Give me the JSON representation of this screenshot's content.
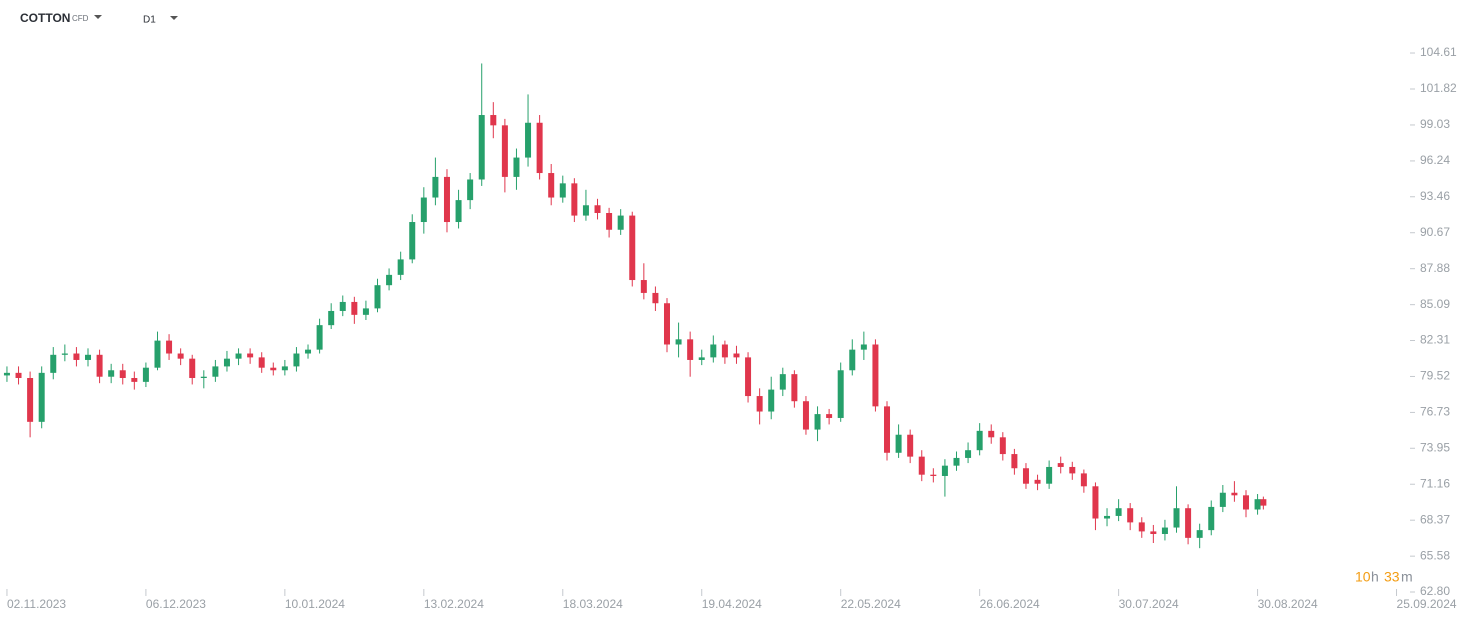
{
  "chart_data": {
    "type": "candlestick",
    "title": "COTTON",
    "subtitle": "CFD",
    "timeframe": "D1",
    "timer": [
      "10",
      "h",
      "33",
      "m"
    ],
    "up_color": "#26a06b",
    "down_color": "#e0364c",
    "x": [
      0,
      2,
      4,
      6,
      8,
      10,
      12,
      14,
      16,
      18,
      20,
      22,
      24,
      26,
      28,
      30,
      32,
      34,
      36,
      38,
      40,
      42,
      44,
      46,
      48,
      50,
      52,
      54,
      56,
      58,
      60,
      62,
      64,
      66,
      68,
      70,
      72,
      74,
      76,
      78,
      80,
      82,
      84,
      86,
      88,
      90,
      92,
      94,
      96,
      98,
      100,
      102,
      104,
      106,
      108,
      110,
      112,
      114,
      116,
      118,
      120,
      122,
      124,
      126,
      128,
      130,
      132,
      134,
      136,
      138,
      140,
      142,
      144,
      146,
      148,
      150,
      152,
      154,
      156,
      158,
      160,
      162,
      164,
      166,
      168,
      170,
      172,
      174,
      176,
      178,
      180,
      182,
      184,
      186,
      188,
      190,
      192,
      194,
      196,
      198,
      200,
      202,
      204,
      206,
      208,
      210,
      212,
      214,
      216,
      217
    ],
    "open": [
      79.6,
      79.8,
      79.4,
      76.0,
      79.8,
      81.2,
      81.3,
      80.8,
      81.2,
      79.5,
      80.0,
      79.4,
      79.1,
      80.2,
      82.3,
      81.3,
      80.9,
      79.4,
      79.5,
      80.3,
      80.9,
      81.3,
      81.0,
      80.2,
      80.0,
      80.3,
      81.3,
      81.6,
      83.5,
      84.6,
      85.3,
      84.3,
      84.8,
      86.6,
      87.4,
      88.6,
      91.5,
      93.4,
      95.0,
      91.5,
      93.2,
      94.8,
      99.8,
      99.0,
      95.0,
      96.5,
      99.2,
      95.3,
      93.4,
      94.5,
      92.0,
      92.8,
      92.2,
      90.9,
      92.0,
      87.0,
      86.0,
      85.2,
      82.0,
      82.4,
      80.8,
      81.0,
      82.0,
      81.3,
      81.0,
      78.0,
      76.8,
      78.5,
      79.7,
      77.6,
      75.4,
      76.6,
      76.3,
      80.0,
      81.6,
      82.0,
      77.2,
      73.6,
      75.0,
      73.3,
      71.9,
      71.8,
      72.6,
      73.2,
      73.8,
      75.3,
      74.8,
      73.5,
      72.4,
      71.5,
      71.2,
      72.8,
      72.5,
      72.0,
      71.0,
      68.5,
      68.7,
      69.3,
      68.2,
      67.5,
      67.3,
      67.8,
      69.3,
      67.0,
      67.6,
      69.4,
      70.5,
      70.3,
      69.2,
      70.0
    ],
    "high": [
      80.3,
      80.3,
      79.9,
      80.3,
      81.8,
      82.0,
      81.8,
      81.7,
      81.6,
      80.5,
      80.5,
      79.9,
      80.6,
      83.0,
      82.8,
      81.7,
      81.2,
      80.0,
      80.8,
      81.5,
      81.7,
      81.7,
      81.4,
      80.6,
      80.8,
      81.8,
      82.0,
      84.0,
      85.2,
      85.8,
      85.7,
      85.4,
      87.1,
      87.9,
      89.2,
      92.1,
      94.2,
      96.5,
      95.6,
      94.0,
      95.3,
      103.8,
      100.8,
      99.5,
      97.2,
      101.4,
      99.8,
      96.0,
      95.1,
      94.9,
      94.0,
      93.3,
      92.6,
      92.5,
      92.3,
      88.3,
      86.5,
      85.6,
      83.7,
      83.0,
      81.6,
      82.7,
      82.3,
      81.9,
      81.4,
      78.6,
      79.5,
      80.2,
      80.0,
      78.0,
      77.2,
      77.0,
      80.6,
      82.4,
      83.0,
      82.4,
      77.6,
      75.8,
      75.4,
      73.8,
      72.4,
      73.1,
      73.7,
      74.4,
      75.9,
      75.8,
      75.2,
      73.9,
      72.8,
      71.9,
      73.0,
      73.3,
      72.9,
      72.3,
      71.3,
      69.3,
      70.0,
      69.7,
      68.6,
      68.0,
      68.4,
      71.0,
      69.6,
      68.1,
      69.9,
      71.1,
      71.4,
      70.7,
      70.4,
      70.2
    ],
    "low": [
      79.1,
      78.9,
      74.8,
      75.5,
      79.3,
      80.7,
      80.3,
      80.3,
      79.0,
      79.0,
      78.9,
      78.5,
      78.7,
      80.0,
      80.8,
      80.4,
      78.9,
      78.6,
      79.1,
      79.9,
      80.4,
      80.5,
      79.8,
      79.6,
      79.6,
      79.9,
      80.9,
      81.3,
      83.2,
      84.2,
      83.6,
      83.9,
      84.5,
      86.2,
      87.0,
      88.3,
      90.6,
      92.8,
      90.7,
      91.0,
      92.5,
      94.3,
      98.0,
      93.8,
      94.0,
      95.8,
      94.8,
      92.8,
      93.0,
      91.5,
      91.6,
      91.7,
      90.3,
      90.5,
      86.5,
      85.5,
      84.6,
      81.4,
      81.0,
      79.5,
      80.4,
      80.6,
      80.5,
      80.5,
      77.5,
      75.8,
      76.2,
      78.0,
      77.1,
      75.0,
      74.5,
      75.8,
      76.0,
      79.6,
      80.8,
      76.8,
      73.0,
      73.2,
      72.8,
      71.4,
      71.3,
      70.2,
      72.2,
      72.8,
      73.4,
      74.3,
      73.0,
      71.9,
      70.8,
      70.7,
      70.8,
      72.0,
      71.5,
      70.5,
      67.6,
      67.9,
      68.3,
      67.6,
      67.0,
      66.6,
      66.8,
      67.4,
      66.5,
      66.2,
      67.2,
      69.0,
      69.8,
      68.6,
      68.8,
      69.2
    ],
    "close": [
      79.8,
      79.4,
      76.0,
      79.8,
      81.2,
      81.3,
      80.8,
      81.2,
      79.5,
      80.0,
      79.4,
      79.1,
      80.2,
      82.3,
      81.3,
      80.9,
      79.4,
      79.5,
      80.3,
      80.9,
      81.3,
      81.0,
      80.2,
      80.0,
      80.3,
      81.3,
      81.6,
      83.5,
      84.6,
      85.3,
      84.3,
      84.8,
      86.6,
      87.4,
      88.6,
      91.5,
      93.4,
      95.0,
      91.5,
      93.2,
      94.8,
      99.8,
      99.0,
      95.0,
      96.5,
      99.2,
      95.3,
      93.4,
      94.5,
      92.0,
      92.8,
      92.2,
      90.9,
      92.0,
      87.0,
      86.0,
      85.2,
      82.0,
      82.4,
      80.8,
      81.0,
      82.0,
      81.0,
      81.0,
      78.0,
      76.8,
      78.5,
      79.7,
      77.6,
      75.4,
      76.6,
      76.3,
      80.0,
      81.6,
      82.0,
      77.2,
      73.6,
      75.0,
      73.3,
      71.9,
      71.8,
      72.6,
      73.2,
      73.8,
      75.3,
      74.8,
      73.5,
      72.4,
      71.2,
      71.2,
      72.5,
      72.5,
      72.0,
      71.0,
      68.5,
      68.7,
      69.3,
      68.2,
      67.5,
      67.3,
      67.8,
      69.3,
      67.0,
      67.6,
      69.4,
      70.5,
      70.3,
      69.2,
      70.0,
      69.5
    ],
    "xlim": [
      -1.2,
      240.6
    ],
    "xticks": [
      {
        "value": 0,
        "label": "02.11.2023"
      },
      {
        "value": 24,
        "label": "06.12.2023"
      },
      {
        "value": 48,
        "label": "10.01.2024"
      },
      {
        "value": 72,
        "label": "13.02.2024"
      },
      {
        "value": 96,
        "label": "18.03.2024"
      },
      {
        "value": 120,
        "label": "19.04.2024"
      },
      {
        "value": 144,
        "label": "22.05.2024"
      },
      {
        "value": 168,
        "label": "26.06.2024"
      },
      {
        "value": 192,
        "label": "30.07.2024"
      },
      {
        "value": 216,
        "label": "30.08.2024"
      },
      {
        "value": 240,
        "label": "25.09.2024"
      }
    ],
    "ylim": [
      62.8,
      105.62
    ],
    "yticks": [
      104.61,
      101.82,
      99.03,
      96.24,
      93.46,
      90.67,
      87.88,
      85.09,
      82.31,
      79.52,
      76.73,
      73.95,
      71.16,
      68.37,
      65.58,
      {
        "value": 62.8,
        "label": "62.80"
      }
    ]
  }
}
